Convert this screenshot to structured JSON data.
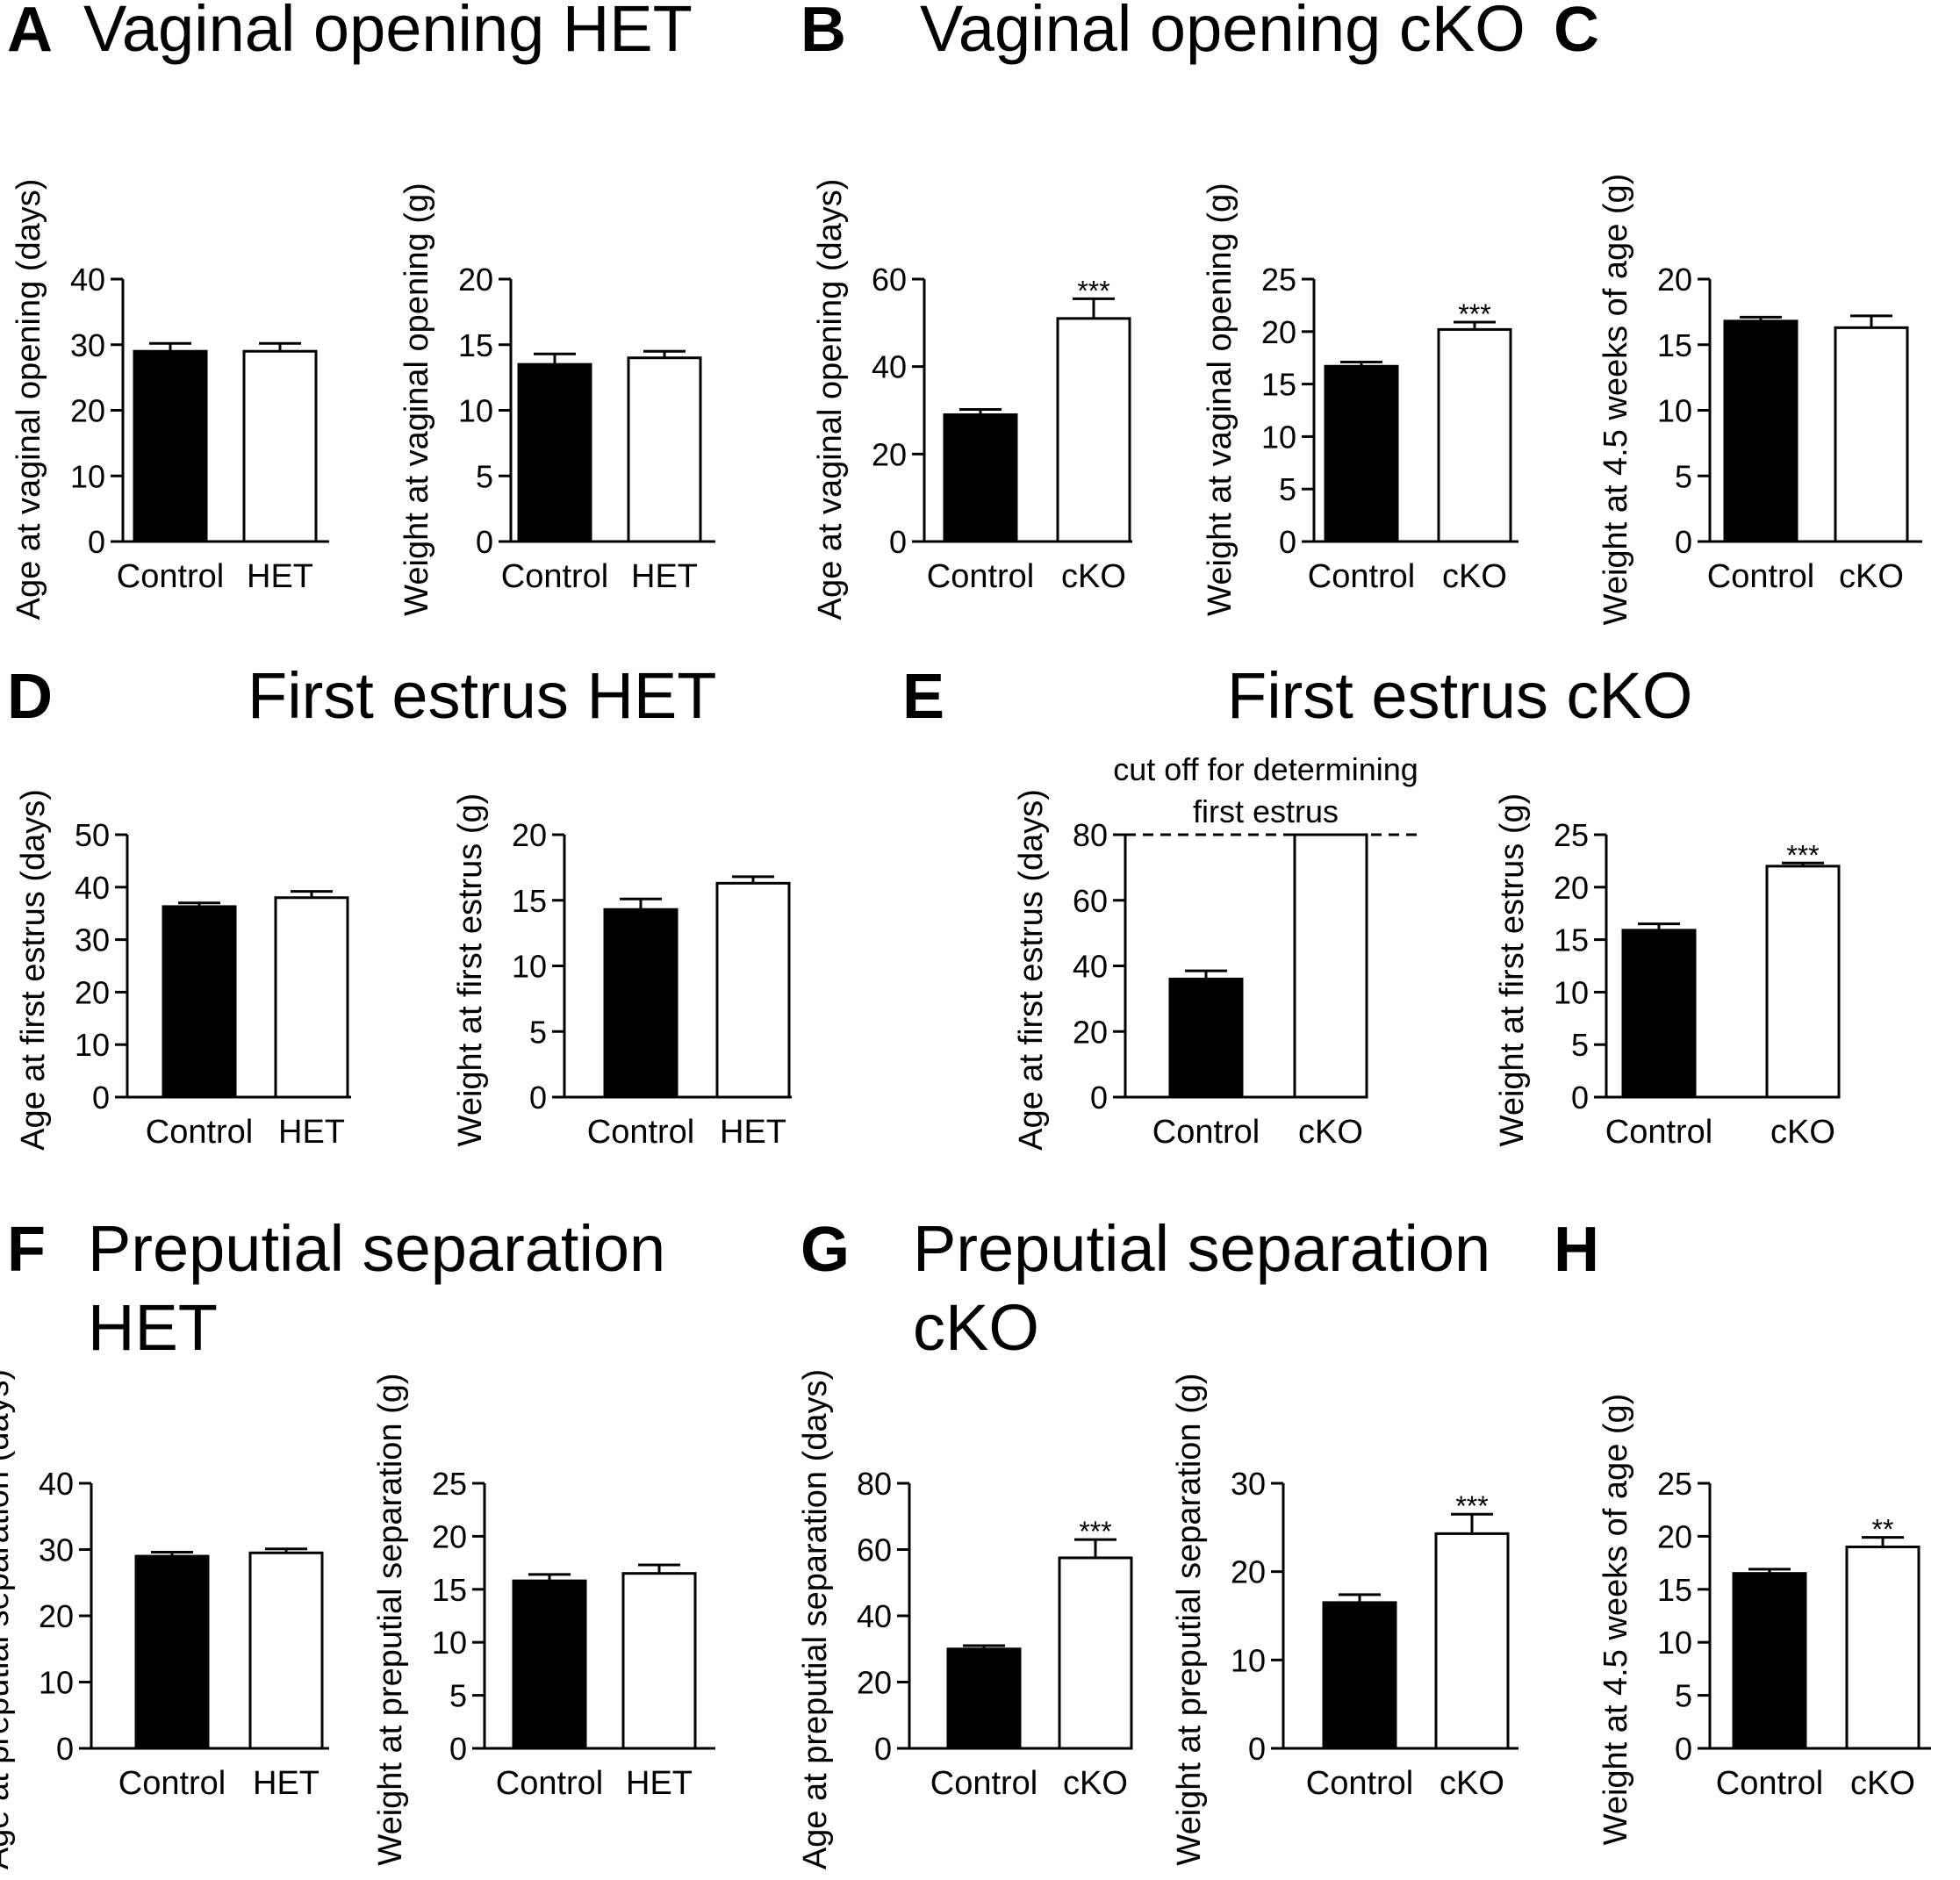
{
  "colors": {
    "control": "#000000",
    "mutant": "#ffffff",
    "stroke": "#000000"
  },
  "panels": [
    {
      "letter": "A",
      "title": [
        "Vaginal opening HET"
      ]
    },
    {
      "letter": "B",
      "title": [
        "Vaginal opening cKO"
      ]
    },
    {
      "letter": "C",
      "title": []
    },
    {
      "letter": "D",
      "title": [
        "First estrus HET"
      ]
    },
    {
      "letter": "E",
      "title": [
        "First estrus cKO"
      ]
    },
    {
      "letter": "F",
      "title": [
        "Preputial separation",
        "HET"
      ]
    },
    {
      "letter": "G",
      "title": [
        "Preputial separation",
        "cKO"
      ]
    },
    {
      "letter": "H",
      "title": []
    }
  ],
  "chart_data": [
    {
      "type": "bar",
      "panel": "A",
      "ylabel": "Age at vaginal opening (days)",
      "ylim": [
        0,
        40
      ],
      "yticks": [
        0,
        10,
        20,
        30,
        40
      ],
      "categories": [
        "Control",
        "HET"
      ],
      "values": [
        29,
        29
      ],
      "errors": [
        1.2,
        1.2
      ],
      "significance": [
        "",
        ""
      ]
    },
    {
      "type": "bar",
      "panel": "A",
      "ylabel": "Weight at vaginal opening (g)",
      "ylim": [
        0,
        20
      ],
      "yticks": [
        0,
        5,
        10,
        15,
        20
      ],
      "categories": [
        "Control",
        "HET"
      ],
      "values": [
        13.5,
        14
      ],
      "errors": [
        0.8,
        0.5
      ],
      "significance": [
        "",
        ""
      ]
    },
    {
      "type": "bar",
      "panel": "B",
      "ylabel": "Age at vaginal opening (days)",
      "ylim": [
        0,
        60
      ],
      "yticks": [
        0,
        20,
        40,
        60
      ],
      "categories": [
        "Control",
        "cKO"
      ],
      "values": [
        29,
        51
      ],
      "errors": [
        1.2,
        4.5
      ],
      "significance": [
        "",
        "***"
      ]
    },
    {
      "type": "bar",
      "panel": "B",
      "ylabel": "Weight at vaginal opening (g)",
      "ylim": [
        0,
        25
      ],
      "yticks": [
        0,
        5,
        10,
        15,
        20,
        25
      ],
      "categories": [
        "Control",
        "cKO"
      ],
      "values": [
        16.7,
        20.2
      ],
      "errors": [
        0.4,
        0.7
      ],
      "significance": [
        "",
        "***"
      ]
    },
    {
      "type": "bar",
      "panel": "C",
      "ylabel": "Weight at 4.5 weeks of age (g)",
      "ylim": [
        0,
        20
      ],
      "yticks": [
        0,
        5,
        10,
        15,
        20
      ],
      "categories": [
        "Control",
        "cKO"
      ],
      "values": [
        16.8,
        16.3
      ],
      "errors": [
        0.3,
        0.9
      ],
      "significance": [
        "",
        ""
      ]
    },
    {
      "type": "bar",
      "panel": "D",
      "ylabel": "Age at first estrus (days)",
      "ylim": [
        0,
        50
      ],
      "yticks": [
        0,
        10,
        20,
        30,
        40,
        50
      ],
      "categories": [
        "Control",
        "HET"
      ],
      "values": [
        36.3,
        38
      ],
      "errors": [
        0.7,
        1.2
      ],
      "significance": [
        "",
        ""
      ]
    },
    {
      "type": "bar",
      "panel": "D",
      "ylabel": "Weight at first estrus (g)",
      "ylim": [
        0,
        20
      ],
      "yticks": [
        0,
        5,
        10,
        15,
        20
      ],
      "categories": [
        "Control",
        "HET"
      ],
      "values": [
        14.3,
        16.3
      ],
      "errors": [
        0.8,
        0.5
      ],
      "significance": [
        "",
        ""
      ]
    },
    {
      "type": "bar",
      "panel": "E",
      "ylabel": "Age at first estrus (days)",
      "ylim": [
        0,
        80
      ],
      "yticks": [
        0,
        20,
        40,
        60,
        80
      ],
      "categories": [
        "Control",
        "cKO"
      ],
      "values": [
        36,
        80
      ],
      "errors": [
        2.5,
        0
      ],
      "significance": [
        "",
        ""
      ],
      "cutoff": 80,
      "cutoff_label": [
        "cut off for determining",
        "first estrus"
      ]
    },
    {
      "type": "bar",
      "panel": "E",
      "ylabel": "Weight at first estrus (g)",
      "ylim": [
        0,
        25
      ],
      "yticks": [
        0,
        5,
        10,
        15,
        20,
        25
      ],
      "categories": [
        "Control",
        "cKO"
      ],
      "values": [
        15.9,
        22
      ],
      "errors": [
        0.6,
        0.3
      ],
      "significance": [
        "",
        "***"
      ]
    },
    {
      "type": "bar",
      "panel": "F",
      "ylabel": "Age at preputial separation (days)",
      "ylim": [
        0,
        40
      ],
      "yticks": [
        0,
        10,
        20,
        30,
        40
      ],
      "categories": [
        "Control",
        "HET"
      ],
      "values": [
        29,
        29.5
      ],
      "errors": [
        0.6,
        0.6
      ],
      "significance": [
        "",
        ""
      ]
    },
    {
      "type": "bar",
      "panel": "F",
      "ylabel": "Weight at preputial separation (g)",
      "ylim": [
        0,
        25
      ],
      "yticks": [
        0,
        5,
        10,
        15,
        20,
        25
      ],
      "categories": [
        "Control",
        "HET"
      ],
      "values": [
        15.8,
        16.5
      ],
      "errors": [
        0.6,
        0.8
      ],
      "significance": [
        "",
        ""
      ]
    },
    {
      "type": "bar",
      "panel": "G",
      "ylabel": "Age at preputial separation (days)",
      "ylim": [
        0,
        80
      ],
      "yticks": [
        0,
        20,
        40,
        60,
        80
      ],
      "categories": [
        "Control",
        "cKO"
      ],
      "values": [
        30,
        57.5
      ],
      "errors": [
        1,
        5.5
      ],
      "significance": [
        "",
        "***"
      ]
    },
    {
      "type": "bar",
      "panel": "G",
      "ylabel": "Weight at preputial separation (g)",
      "ylim": [
        0,
        30
      ],
      "yticks": [
        0,
        10,
        20,
        30
      ],
      "categories": [
        "Control",
        "cKO"
      ],
      "values": [
        16.5,
        24.3
      ],
      "errors": [
        0.9,
        2.2
      ],
      "significance": [
        "",
        "***"
      ]
    },
    {
      "type": "bar",
      "panel": "H",
      "ylabel": "Weight at 4.5 weeks of age (g)",
      "ylim": [
        0,
        25
      ],
      "yticks": [
        0,
        5,
        10,
        15,
        20,
        25
      ],
      "categories": [
        "Control",
        "cKO"
      ],
      "values": [
        16.5,
        19
      ],
      "errors": [
        0.4,
        0.9
      ],
      "significance": [
        "",
        "**"
      ]
    }
  ]
}
